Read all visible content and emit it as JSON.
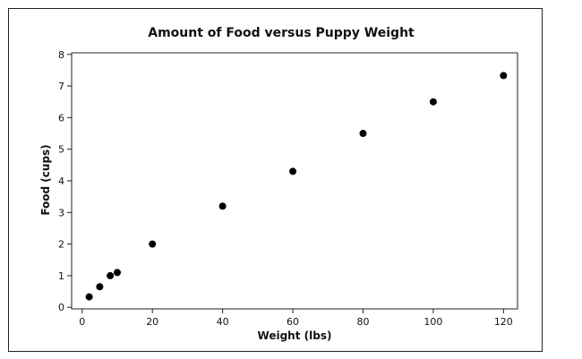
{
  "chart_data": {
    "type": "scatter",
    "title": "Amount of Food versus Puppy Weight",
    "xlabel": "Weight (lbs)",
    "ylabel": "Food (cups)",
    "xlim": [
      -3,
      124
    ],
    "ylim": [
      -0.05,
      8.05
    ],
    "xticks": [
      0,
      20,
      40,
      60,
      80,
      100,
      120
    ],
    "yticks": [
      0,
      1,
      2,
      3,
      4,
      5,
      6,
      7,
      8
    ],
    "grid": false,
    "series": [
      {
        "color": "#000000",
        "points": [
          {
            "x": 2,
            "y": 0.33
          },
          {
            "x": 5,
            "y": 0.65
          },
          {
            "x": 8,
            "y": 1.0
          },
          {
            "x": 10,
            "y": 1.1
          },
          {
            "x": 20,
            "y": 2.0
          },
          {
            "x": 40,
            "y": 3.2
          },
          {
            "x": 60,
            "y": 4.3
          },
          {
            "x": 80,
            "y": 5.5
          },
          {
            "x": 100,
            "y": 6.5
          },
          {
            "x": 120,
            "y": 7.33
          }
        ]
      }
    ]
  }
}
